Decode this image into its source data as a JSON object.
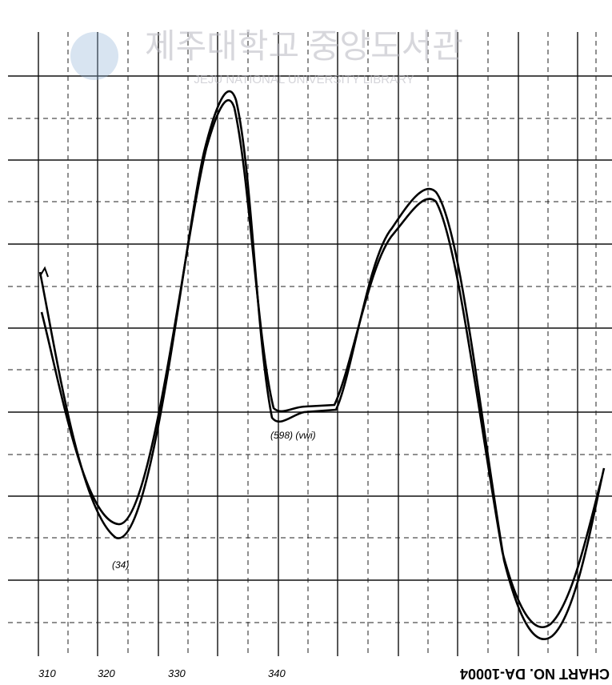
{
  "watermark": {
    "title": "제주대학교 중앙도서관",
    "subtitle": "JEJU NATIONAL UNIVERSITY LIBRARY"
  },
  "axis_labels": [
    "310",
    "320",
    "330",
    "340"
  ],
  "footer": "CHART NO. DA-10004",
  "annotations": [
    "(34)",
    "(598) (vwi)"
  ]
}
